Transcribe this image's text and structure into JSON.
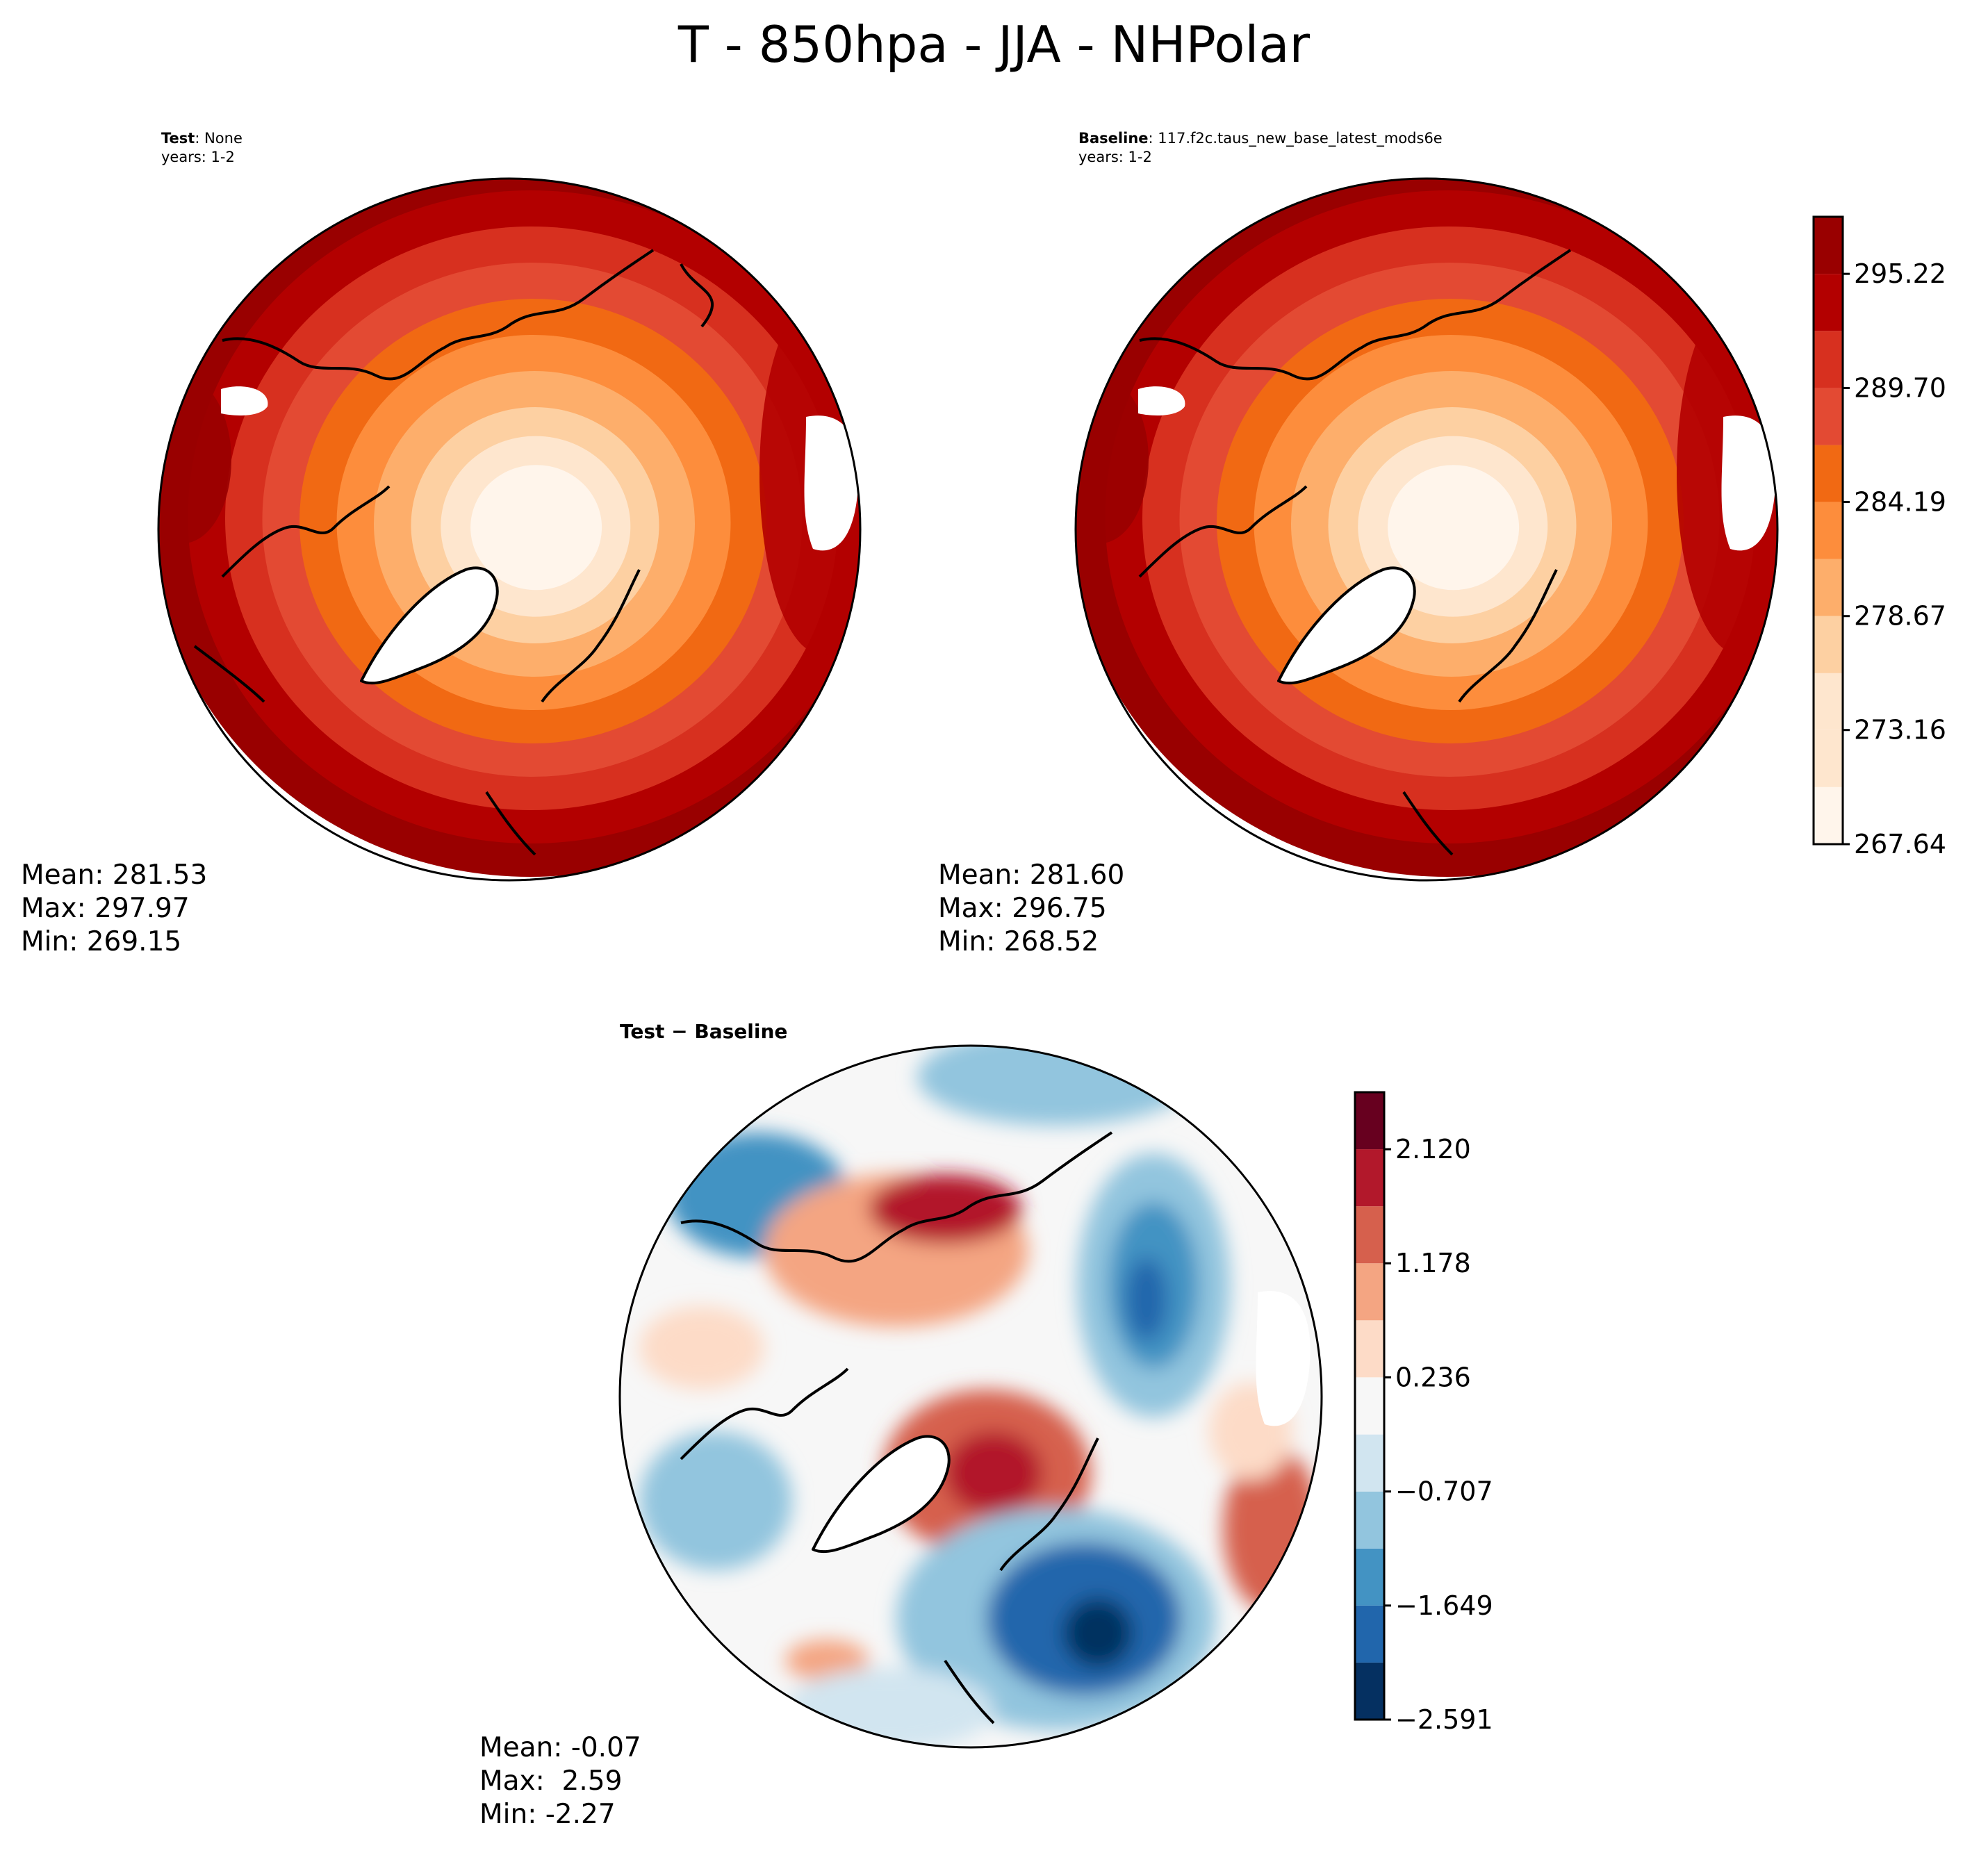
{
  "title": "T - 850hpa - JJA - NHPolar",
  "panels": {
    "test": {
      "label": "Test",
      "name": "None",
      "years": "years: 1-2",
      "stats": {
        "mean": "Mean: 281.53",
        "max": "Max: 297.97",
        "min": "Min: 269.15"
      }
    },
    "baseline": {
      "label": "Baseline",
      "name": "117.f2c.taus_new_base_latest_mods6e",
      "years": "years: 1-2",
      "stats": {
        "mean": "Mean: 281.60",
        "max": "Max: 296.75",
        "min": "Min: 268.52"
      }
    },
    "diff": {
      "title": "Test − Baseline",
      "stats": {
        "mean": "Mean: -0.07",
        "max": "Max:  2.59",
        "min": "Min: -2.27"
      }
    }
  },
  "chart_data": [
    {
      "type": "heatmap",
      "projection": "north-polar-stereographic",
      "panel": "Test",
      "field": "T 850hpa JJA",
      "mean": 281.53,
      "max": 297.97,
      "min": 269.15,
      "pattern": "coldest near pole, warming toward lower latitudes, warmest over continents/eastern Asia edge",
      "colormap": "OrRd-like",
      "levels": [
        267.64,
        270.4,
        273.16,
        275.91,
        278.67,
        281.43,
        284.19,
        286.94,
        289.7,
        292.46,
        295.22,
        297.98
      ]
    },
    {
      "type": "heatmap",
      "projection": "north-polar-stereographic",
      "panel": "Baseline",
      "field": "T 850hpa JJA",
      "mean": 281.6,
      "max": 296.75,
      "min": 268.52,
      "colormap": "OrRd-like",
      "levels": [
        267.64,
        270.4,
        273.16,
        275.91,
        278.67,
        281.43,
        284.19,
        286.94,
        289.7,
        292.46,
        295.22,
        297.98
      ],
      "colorbar_ticks": [
        "267.64",
        "273.16",
        "278.67",
        "284.19",
        "289.70",
        "295.22"
      ]
    },
    {
      "type": "heatmap",
      "projection": "north-polar-stereographic",
      "panel": "Test − Baseline",
      "field": "T difference",
      "mean": -0.07,
      "max": 2.59,
      "min": -2.27,
      "colormap": "RdBu_r",
      "levels": [
        -2.591,
        -2.12,
        -1.649,
        -1.178,
        -0.707,
        -0.236,
        0.236,
        0.707,
        1.178,
        1.649,
        2.12,
        2.591
      ],
      "colorbar_ticks": [
        "−2.591",
        "−1.649",
        "−0.707",
        "0.236",
        "1.178",
        "2.120"
      ]
    }
  ],
  "colors": {
    "seq": [
      "#fff5eb",
      "#fee6ce",
      "#fdd0a2",
      "#fdae6b",
      "#fd8d3c",
      "#f16913",
      "#e34a33",
      "#d7301f",
      "#b30000",
      "#990000",
      "#7f0000"
    ],
    "div": [
      "#053061",
      "#2166ac",
      "#4393c3",
      "#92c5de",
      "#d1e5f0",
      "#f7f7f7",
      "#fddbc7",
      "#f4a582",
      "#d6604d",
      "#b2182b",
      "#67001f"
    ],
    "land_outline": "#000000",
    "missing": "#ffffff"
  }
}
